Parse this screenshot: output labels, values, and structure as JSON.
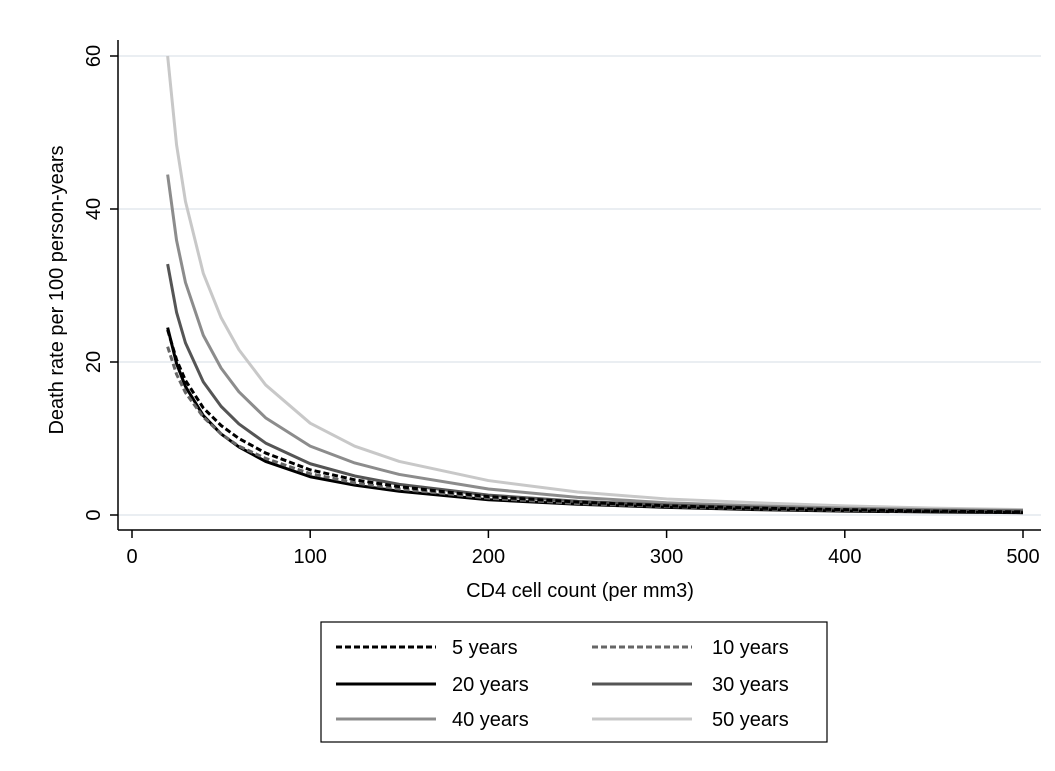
{
  "chart_data": {
    "type": "line",
    "xlabel": "CD4 cell count (per mm3)",
    "ylabel": "Death rate per 100 person-years",
    "xlim": [
      0,
      510
    ],
    "ylim": [
      0,
      60
    ],
    "x_ticks": [
      "0",
      "100",
      "200",
      "300",
      "400",
      "500"
    ],
    "y_ticks": [
      "0",
      "20",
      "40",
      "60"
    ],
    "grid": "horizontal",
    "legend_position": "bottom",
    "x": [
      20,
      25,
      30,
      40,
      50,
      60,
      75,
      100,
      125,
      150,
      200,
      250,
      300,
      350,
      400,
      450,
      500
    ],
    "series": [
      {
        "name": "5 years",
        "color": "#000000",
        "dash": "dashed",
        "values": [
          24.2,
          20.3,
          17.6,
          14.0,
          11.7,
          10.0,
          8.1,
          5.9,
          4.6,
          3.7,
          2.4,
          1.7,
          1.2,
          0.9,
          0.7,
          0.5,
          0.4
        ]
      },
      {
        "name": "10 years",
        "color": "#666666",
        "dash": "dashed",
        "values": [
          22.0,
          18.4,
          16.0,
          12.8,
          10.6,
          9.0,
          7.4,
          5.4,
          4.2,
          3.4,
          2.2,
          1.5,
          1.1,
          0.8,
          0.6,
          0.5,
          0.4
        ]
      },
      {
        "name": "20 years",
        "color": "#000000",
        "dash": "solid",
        "values": [
          24.5,
          19.8,
          16.8,
          13.0,
          10.6,
          8.9,
          7.0,
          5.0,
          3.9,
          3.1,
          2.0,
          1.4,
          1.0,
          0.7,
          0.5,
          0.4,
          0.3
        ]
      },
      {
        "name": "30 years",
        "color": "#555555",
        "dash": "solid",
        "values": [
          32.8,
          26.5,
          22.5,
          17.4,
          14.2,
          11.9,
          9.4,
          6.7,
          5.1,
          4.0,
          2.6,
          1.8,
          1.3,
          1.0,
          0.7,
          0.6,
          0.5
        ]
      },
      {
        "name": "40 years",
        "color": "#8c8c8c",
        "dash": "solid",
        "values": [
          44.5,
          35.9,
          30.4,
          23.5,
          19.2,
          16.1,
          12.7,
          9.0,
          6.8,
          5.3,
          3.4,
          2.3,
          1.6,
          1.2,
          0.9,
          0.7,
          0.6
        ]
      },
      {
        "name": "50 years",
        "color": "#c8c8c8",
        "dash": "solid",
        "values": [
          60.0,
          48.4,
          41.0,
          31.6,
          25.8,
          21.6,
          17.0,
          12.0,
          9.0,
          7.0,
          4.5,
          3.0,
          2.1,
          1.6,
          1.2,
          0.9,
          0.7
        ]
      }
    ]
  }
}
